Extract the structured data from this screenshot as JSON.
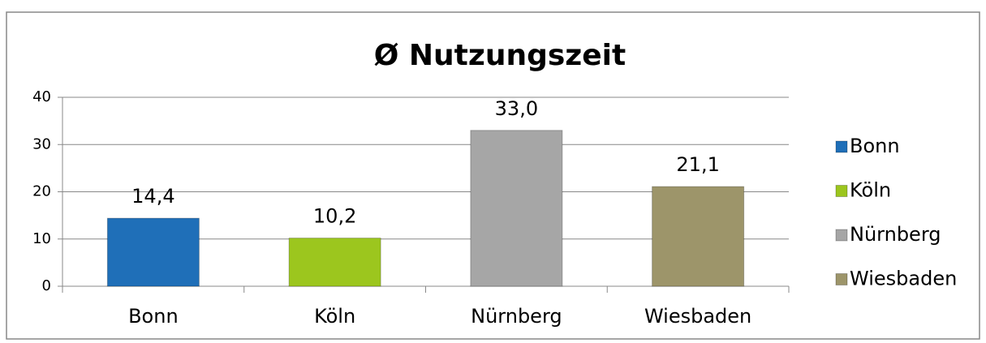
{
  "chart_data": {
    "type": "bar",
    "title": "Ø Nutzungszeit",
    "categories": [
      "Bonn",
      "Köln",
      "Nürnberg",
      "Wiesbaden"
    ],
    "values": [
      14.4,
      10.2,
      33.0,
      21.1
    ],
    "value_labels": [
      "14,4",
      "10,2",
      "33,0",
      "21,1"
    ],
    "colors": [
      "#1f6fb8",
      "#9cc61e",
      "#a6a6a6",
      "#9d956a"
    ],
    "ylim": [
      0,
      40
    ],
    "yticks": [
      0,
      10,
      20,
      30,
      40
    ],
    "grid": true,
    "legend": "right"
  }
}
